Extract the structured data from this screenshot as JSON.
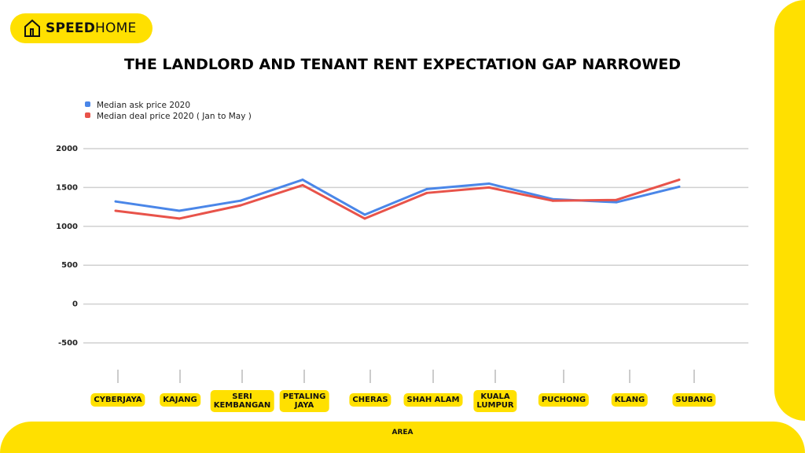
{
  "brand": {
    "name_bold": "SPEED",
    "name_rest": "HOME",
    "logo_icon": "house-icon",
    "color": "#FFE000"
  },
  "chart_data": {
    "type": "line",
    "title": "THE LANDLORD AND TENANT RENT EXPECTATION GAP NARROWED",
    "xlabel": "AREA",
    "ylabel": "",
    "categories": [
      "CYBERJAYA",
      "KAJANG",
      "SERI KEMBANGAN",
      "PETALING JAYA",
      "CHERAS",
      "SHAH ALAM",
      "KUALA LUMPUR",
      "PUCHONG",
      "KLANG",
      "SUBANG"
    ],
    "ylim": [
      -500,
      2000
    ],
    "yticks": [
      "2000",
      "1500",
      "1000",
      "500",
      "0",
      "-500"
    ],
    "grid": true,
    "legend": "top-left",
    "series": [
      {
        "name": "Median ask price 2020",
        "color": "#4A86E8",
        "values": [
          1320,
          1200,
          1330,
          1600,
          1150,
          1480,
          1550,
          1350,
          1310,
          1510
        ]
      },
      {
        "name": "Median deal price 2020 ( Jan to May )",
        "color": "#E8534A",
        "values": [
          1200,
          1100,
          1270,
          1530,
          1100,
          1430,
          1500,
          1330,
          1340,
          1600
        ]
      }
    ]
  }
}
